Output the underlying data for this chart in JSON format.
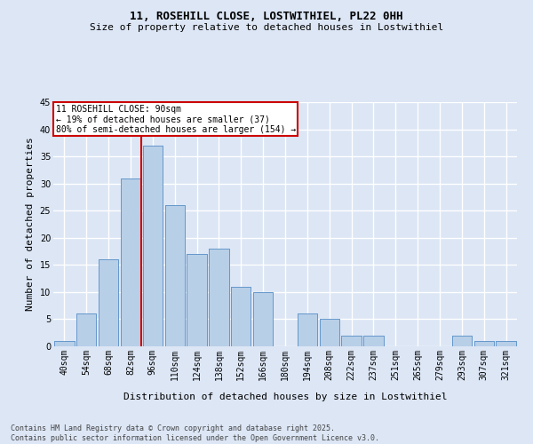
{
  "title": "11, ROSEHILL CLOSE, LOSTWITHIEL, PL22 0HH",
  "subtitle": "Size of property relative to detached houses in Lostwithiel",
  "xlabel": "Distribution of detached houses by size in Lostwithiel",
  "ylabel": "Number of detached properties",
  "footer_line1": "Contains HM Land Registry data © Crown copyright and database right 2025.",
  "footer_line2": "Contains public sector information licensed under the Open Government Licence v3.0.",
  "bar_categories": [
    "40sqm",
    "54sqm",
    "68sqm",
    "82sqm",
    "96sqm",
    "110sqm",
    "124sqm",
    "138sqm",
    "152sqm",
    "166sqm",
    "180sqm",
    "194sqm",
    "208sqm",
    "222sqm",
    "237sqm",
    "251sqm",
    "265sqm",
    "279sqm",
    "293sqm",
    "307sqm",
    "321sqm"
  ],
  "bar_values": [
    1,
    6,
    16,
    31,
    37,
    26,
    17,
    18,
    11,
    10,
    0,
    6,
    5,
    2,
    2,
    0,
    0,
    0,
    2,
    1,
    1
  ],
  "bar_color": "#b8cfe8",
  "bar_edge_color": "#6699cc",
  "background_color": "#dce6f5",
  "grid_color": "#ffffff",
  "ylim": [
    0,
    45
  ],
  "yticks": [
    0,
    5,
    10,
    15,
    20,
    25,
    30,
    35,
    40,
    45
  ],
  "property_line_index": 4,
  "annotation_text_line1": "11 ROSEHILL CLOSE: 90sqm",
  "annotation_text_line2": "← 19% of detached houses are smaller (37)",
  "annotation_text_line3": "80% of semi-detached houses are larger (154) →",
  "annotation_box_color": "#ffffff",
  "annotation_box_edge": "#cc0000",
  "vline_color": "#cc0000",
  "title_fontsize": 9,
  "subtitle_fontsize": 8,
  "tick_fontsize": 7,
  "label_fontsize": 8,
  "annotation_fontsize": 7,
  "footer_fontsize": 6
}
